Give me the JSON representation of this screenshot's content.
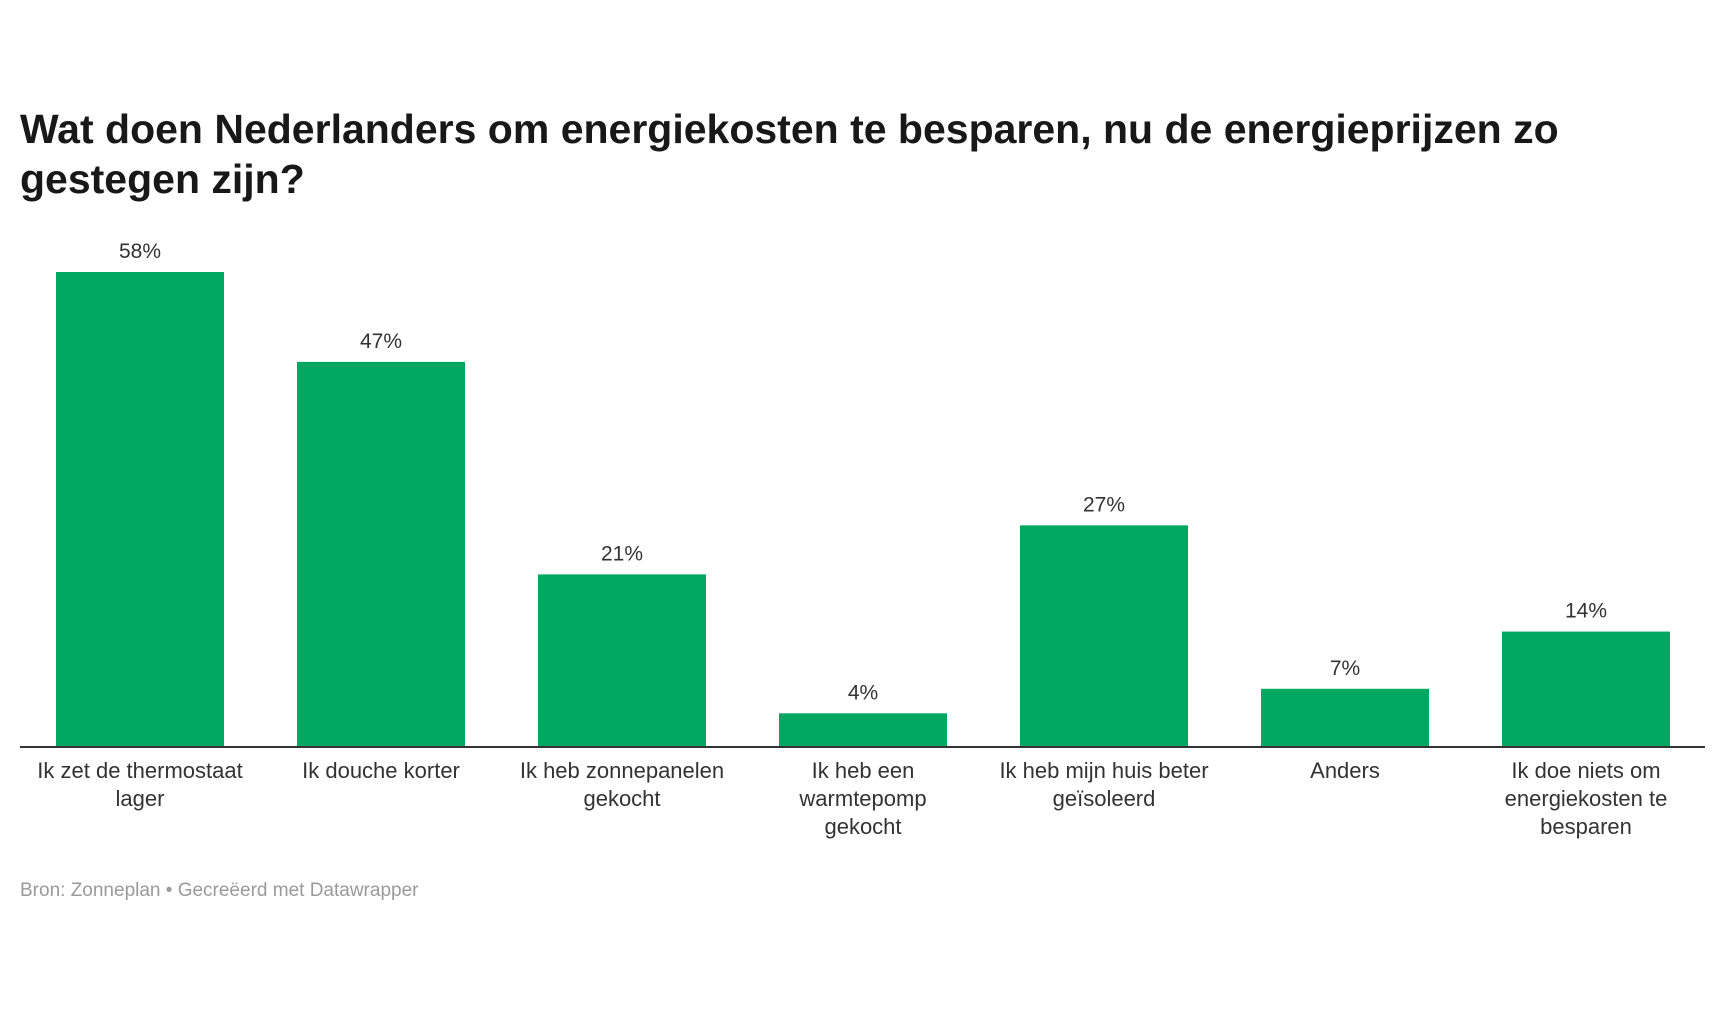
{
  "chart_data": {
    "type": "bar",
    "title": "Wat doen Nederlanders om energiekosten te besparen, nu de energieprijzen zo gestegen zijn?",
    "categories": [
      "Ik zet de thermostaat lager",
      "Ik douche korter",
      "Ik heb zonnepanelen gekocht",
      "Ik heb een warmtepomp gekocht",
      "Ik heb mijn huis beter geïsoleerd",
      "Anders",
      "Ik doe niets om energiekosten te besparen"
    ],
    "values": [
      58,
      47,
      21,
      4,
      27,
      7,
      14
    ],
    "value_labels": [
      "58%",
      "47%",
      "21%",
      "4%",
      "27%",
      "7%",
      "14%"
    ],
    "unit": "%",
    "xlabel": "",
    "ylabel": "",
    "ylim": [
      0,
      58
    ],
    "grid": false,
    "bar_color": "#00a862",
    "axis_color": "#333333"
  },
  "source": "Bron: Zonneplan • Gecreëerd met Datawrapper"
}
